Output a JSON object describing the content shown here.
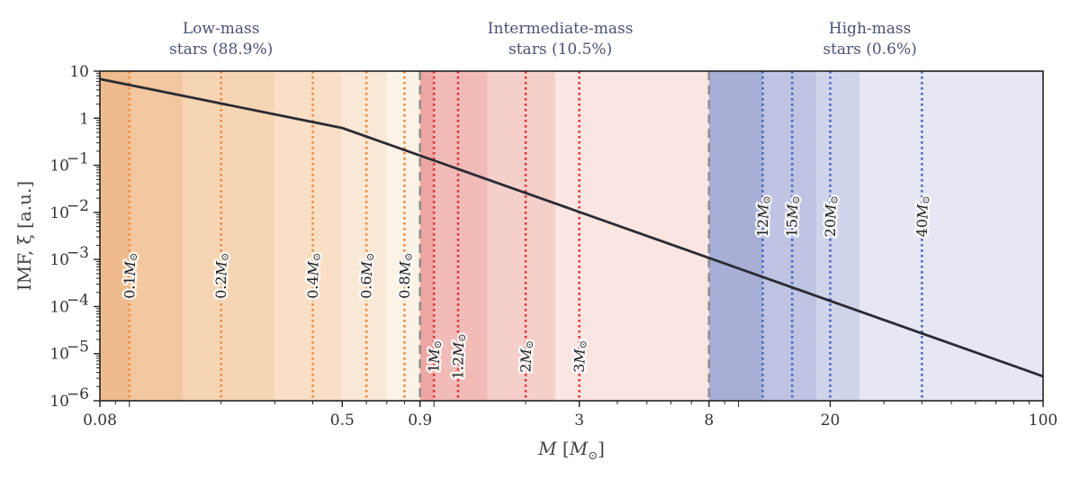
{
  "chart_data": {
    "type": "line",
    "xscale": "log",
    "yscale": "log",
    "xlim": [
      0.08,
      100
    ],
    "ylim": [
      1e-06,
      10
    ],
    "xlabel": "M [M_⊙]",
    "ylabel": "IMF, ξ [a.u.]",
    "xticks": [
      {
        "value": 0.08,
        "label": "0.08"
      },
      {
        "value": 0.5,
        "label": "0.5"
      },
      {
        "value": 0.9,
        "label": "0.9"
      },
      {
        "value": 3,
        "label": "3"
      },
      {
        "value": 8,
        "label": "8"
      },
      {
        "value": 20,
        "label": "20"
      },
      {
        "value": 100,
        "label": "100"
      }
    ],
    "yticks": [
      {
        "value": 10,
        "label": "10"
      },
      {
        "value": 1,
        "label": "1"
      },
      {
        "value": 0.1,
        "label": "10",
        "exp": "−1"
      },
      {
        "value": 0.01,
        "label": "10",
        "exp": "−2"
      },
      {
        "value": 0.001,
        "label": "10",
        "exp": "−3"
      },
      {
        "value": 0.0001,
        "label": "10",
        "exp": "−4"
      },
      {
        "value": 1e-05,
        "label": "10",
        "exp": "−5"
      },
      {
        "value": 1e-06,
        "label": "10",
        "exp": "−6"
      }
    ],
    "series": [
      {
        "name": "IMF",
        "color": "#2b2b33",
        "points": [
          [
            0.08,
            6.8
          ],
          [
            0.5,
            0.62
          ],
          [
            8,
            0.00108
          ],
          [
            100,
            3.3e-06
          ]
        ]
      }
    ],
    "regions": [
      {
        "title_line1": "Low-mass",
        "title_line2": "stars (88.9%)",
        "x_center": 0.2
      },
      {
        "title_line1": "Intermediate-mass",
        "title_line2": "stars (10.5%)",
        "x_center": 2.6
      },
      {
        "title_line1": "High-mass",
        "title_line2": "stars (0.6%)",
        "x_center": 27
      }
    ],
    "boundaries": [
      0.9,
      8
    ],
    "bands": [
      {
        "from": 0.08,
        "to": 0.1,
        "color": "#f0bb8c"
      },
      {
        "from": 0.1,
        "to": 0.15,
        "color": "#f3c8a0"
      },
      {
        "from": 0.15,
        "to": 0.3,
        "color": "#f6d5b5"
      },
      {
        "from": 0.3,
        "to": 0.5,
        "color": "#f8dfc6"
      },
      {
        "from": 0.5,
        "to": 0.7,
        "color": "#fae8d6"
      },
      {
        "from": 0.7,
        "to": 0.9,
        "color": "#fdf2e6"
      },
      {
        "from": 0.9,
        "to": 1.0,
        "color": "#eda6a2"
      },
      {
        "from": 1.0,
        "to": 1.5,
        "color": "#f1bbb7"
      },
      {
        "from": 1.5,
        "to": 2.5,
        "color": "#f5d0cb"
      },
      {
        "from": 2.5,
        "to": 8,
        "color": "#fae5e0"
      },
      {
        "from": 8,
        "to": 12,
        "color": "#a7afd6"
      },
      {
        "from": 12,
        "to": 18,
        "color": "#bec4e2"
      },
      {
        "from": 18,
        "to": 25,
        "color": "#d0d4ea"
      },
      {
        "from": 25,
        "to": 100,
        "color": "#e5e7f3"
      }
    ],
    "mass_markers": [
      {
        "mass": 0.1,
        "label": "0.1M",
        "color": "#f08a3a",
        "label_y": 0.00045
      },
      {
        "mass": 0.2,
        "label": "0.2M",
        "color": "#f08a3a",
        "label_y": 0.00045
      },
      {
        "mass": 0.4,
        "label": "0.4M",
        "color": "#f08a3a",
        "label_y": 0.00045
      },
      {
        "mass": 0.6,
        "label": "0.6M",
        "color": "#f08a3a",
        "label_y": 0.00045
      },
      {
        "mass": 0.8,
        "label": "0.8M",
        "color": "#f08a3a",
        "label_y": 0.00045
      },
      {
        "mass": 1.0,
        "label": "1M",
        "color": "#e0313a",
        "label_y": 8.7e-06
      },
      {
        "mass": 1.2,
        "label": "1.2M",
        "color": "#e0313a",
        "label_y": 8.7e-06
      },
      {
        "mass": 2.0,
        "label": "2M",
        "color": "#e0313a",
        "label_y": 8.7e-06
      },
      {
        "mass": 3.0,
        "label": "3M",
        "color": "#e0313a",
        "label_y": 8.7e-06
      },
      {
        "mass": 12,
        "label": "12M",
        "color": "#4b63c4",
        "label_y": 0.0082
      },
      {
        "mass": 15,
        "label": "15M",
        "color": "#4b63c4",
        "label_y": 0.0082
      },
      {
        "mass": 20,
        "label": "20M",
        "color": "#4b63c4",
        "label_y": 0.0082
      },
      {
        "mass": 40,
        "label": "40M",
        "color": "#4b63c4",
        "label_y": 0.0082
      }
    ],
    "sun_symbol": "⊙"
  }
}
